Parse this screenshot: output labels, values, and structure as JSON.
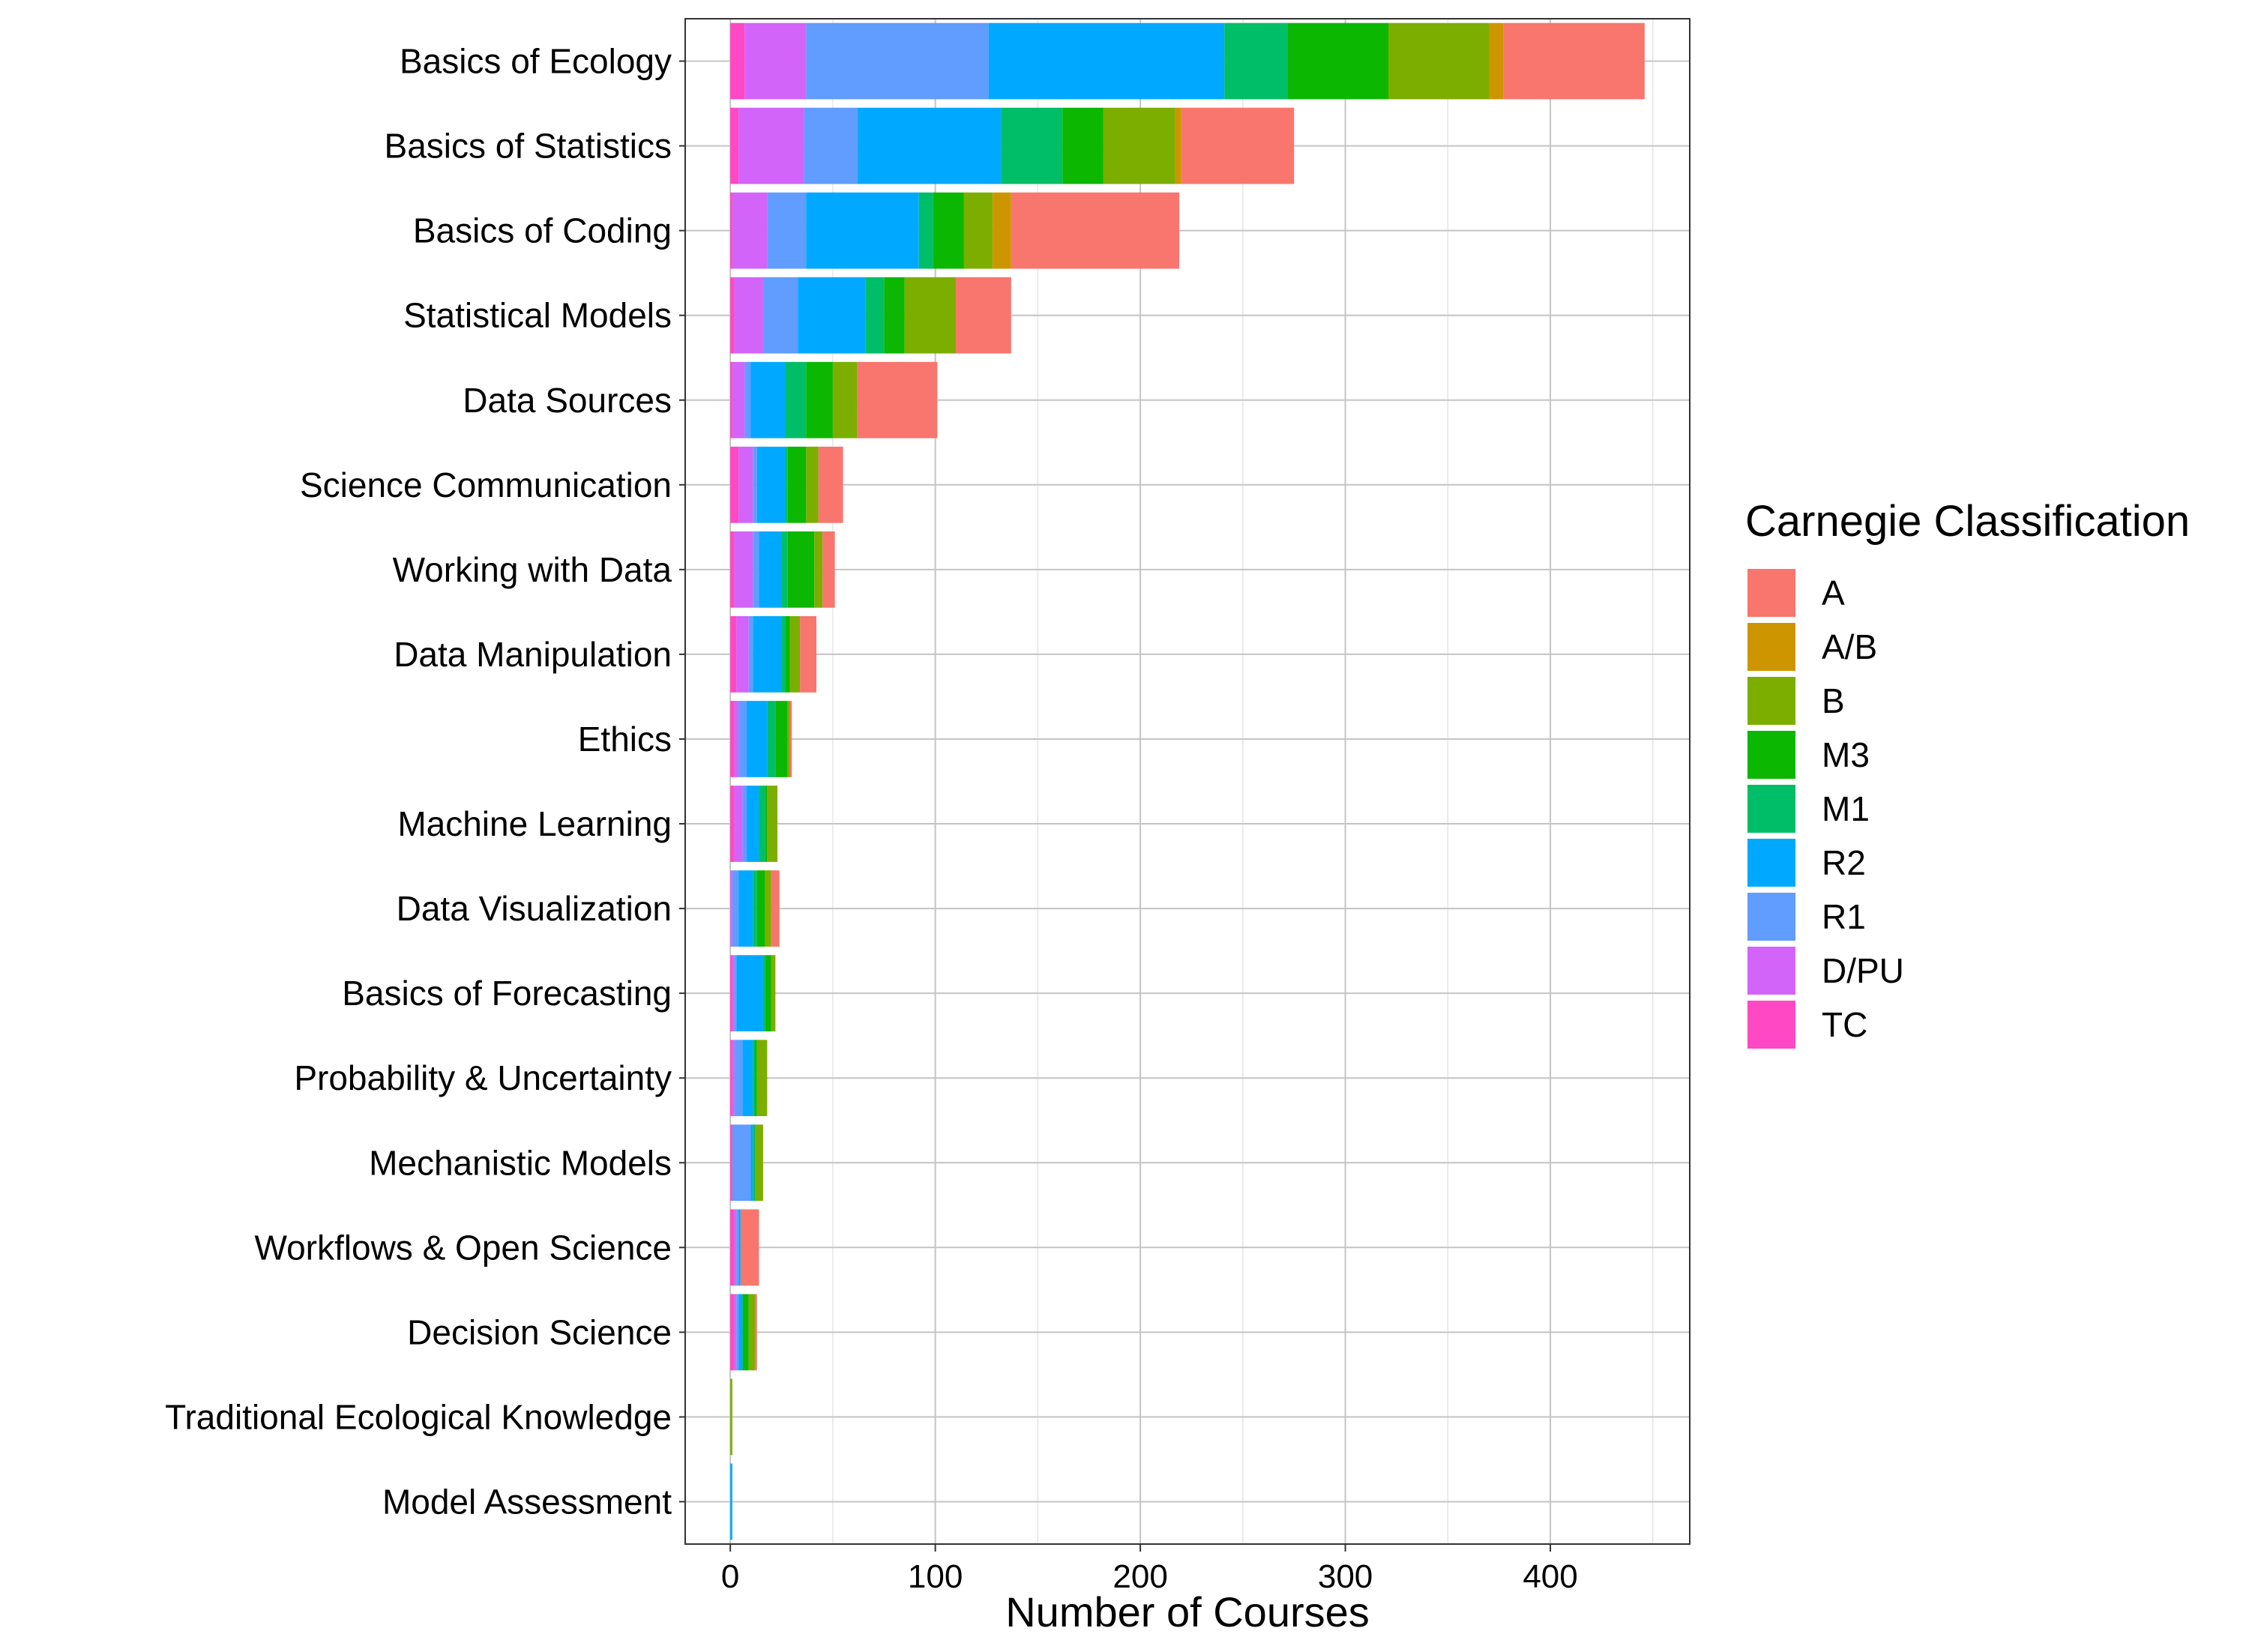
{
  "chart_data": {
    "type": "bar",
    "orientation": "horizontal",
    "stacked": true,
    "title": "",
    "xlabel": "Number of Courses",
    "ylabel": "",
    "xlim": [
      -22,
      468
    ],
    "xticks": [
      0,
      100,
      200,
      300,
      400
    ],
    "grid": true,
    "legend_position": "right",
    "legend_title": "Carnegie Classification",
    "categories": [
      "Basics of Ecology",
      "Basics of Statistics",
      "Basics of Coding",
      "Statistical Models",
      "Data Sources",
      "Science Communication",
      "Working with Data",
      "Data Manipulation",
      "Ethics",
      "Machine Learning",
      "Data Visualization",
      "Basics of Forecasting",
      "Probability & Uncertainty",
      "Mechanistic Models",
      "Workflows & Open Science",
      "Decision Science",
      "Traditional Ecological Knowledge",
      "Model Assessment"
    ],
    "stack_order": [
      "TC",
      "D/PU",
      "R1",
      "R2",
      "M1",
      "M3",
      "B",
      "A/B",
      "A"
    ],
    "series": [
      {
        "name": "A",
        "color": "#F8766D",
        "values": [
          69,
          55,
          82,
          27,
          39,
          12,
          6,
          8,
          1,
          0,
          4,
          0,
          0,
          0,
          9,
          1,
          0,
          0
        ]
      },
      {
        "name": "A/B",
        "color": "#CD9600",
        "values": [
          7,
          3,
          9,
          0,
          0,
          0,
          0,
          0,
          0,
          0,
          0,
          0,
          0,
          0,
          0,
          0,
          0,
          0
        ]
      },
      {
        "name": "B",
        "color": "#7CAE00",
        "values": [
          49,
          35,
          14,
          25,
          12,
          6,
          4,
          5,
          1,
          5,
          3,
          2,
          5,
          4,
          0,
          3,
          1,
          0
        ]
      },
      {
        "name": "M3",
        "color": "#0CB702",
        "values": [
          49,
          20,
          15,
          10,
          13,
          9,
          13,
          2,
          6,
          1,
          4,
          3,
          1,
          0,
          0,
          3,
          0,
          0
        ]
      },
      {
        "name": "M1",
        "color": "#00BE67",
        "values": [
          31,
          30,
          7,
          9,
          10,
          1,
          3,
          2,
          4,
          3,
          2,
          1,
          1,
          1,
          0,
          0,
          0,
          0
        ]
      },
      {
        "name": "R2",
        "color": "#00A9FF",
        "values": [
          115,
          70,
          55,
          33,
          17,
          14,
          11,
          14,
          10,
          6,
          7,
          13,
          5,
          1,
          1,
          2,
          0,
          1
        ]
      },
      {
        "name": "R1",
        "color": "#619CFF",
        "values": [
          89,
          26,
          19,
          17,
          3,
          2,
          3,
          2,
          4,
          2,
          3,
          1,
          4,
          9,
          1,
          1,
          0,
          0
        ]
      },
      {
        "name": "D/PU",
        "color": "#D264F9",
        "values": [
          30,
          32,
          17,
          14,
          6,
          7,
          9,
          6,
          2,
          4,
          1,
          1,
          1,
          0,
          1,
          1,
          0,
          0
        ]
      },
      {
        "name": "TC",
        "color": "#FF48C3",
        "values": [
          7,
          4,
          1,
          2,
          1,
          4,
          2,
          3,
          2,
          2,
          0,
          1,
          1,
          1,
          2,
          2,
          0,
          0
        ]
      }
    ]
  }
}
